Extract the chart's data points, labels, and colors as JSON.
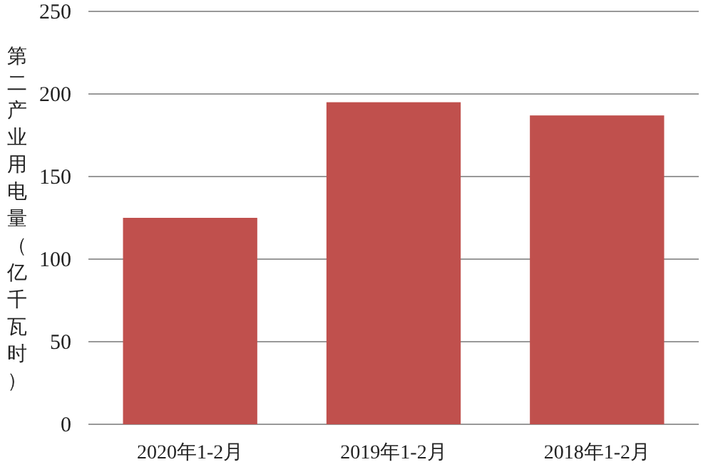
{
  "chart_data": {
    "type": "bar",
    "ylabel": "第二产业用电量（亿千瓦时）",
    "categories": [
      "2020年1-2月",
      "2019年1-2月",
      "2018年1-2月"
    ],
    "values": [
      125,
      195,
      187
    ],
    "color": "#c0504d",
    "ylim": [
      0,
      250
    ],
    "yticks": [
      0,
      50,
      100,
      150,
      200,
      250
    ],
    "grid": "y"
  }
}
